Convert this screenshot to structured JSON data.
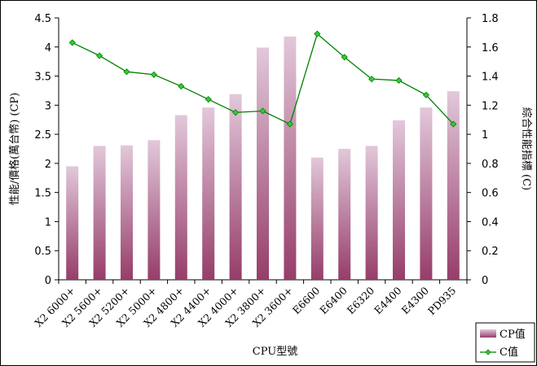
{
  "chart_data": {
    "type": "bar",
    "title": "",
    "xlabel": "CPU型號",
    "ylabel": "性能/價格(萬台幣) (CP)",
    "y2label": "綜合性能指標 (C)",
    "ylim": [
      0,
      4.5
    ],
    "y2lim": [
      0,
      1.8
    ],
    "yticks": [
      "0",
      "0.5",
      "1",
      "1.5",
      "2",
      "2.5",
      "3",
      "3.5",
      "4",
      "4.5"
    ],
    "y2ticks": [
      "0",
      "0.2",
      "0.4",
      "0.6",
      "0.8",
      "1",
      "1.2",
      "1.4",
      "1.6",
      "1.8"
    ],
    "categories": [
      "X2 6000+",
      "X2 5600+",
      "X2 5200+",
      "X2 5000+",
      "X2 4800+",
      "X2 4400+",
      "X2 4000+",
      "X2 3800+",
      "X2 3600+",
      "E6600",
      "E6400",
      "E6320",
      "E4400",
      "E4300",
      "PD935"
    ],
    "series": [
      {
        "name": "CP值",
        "type": "bar",
        "axis": "left",
        "values": [
          1.95,
          2.3,
          2.31,
          2.4,
          2.83,
          2.96,
          3.19,
          3.99,
          4.18,
          2.1,
          2.25,
          2.3,
          2.74,
          2.96,
          3.24
        ]
      },
      {
        "name": "C值",
        "type": "line",
        "axis": "right",
        "values": [
          1.63,
          1.54,
          1.43,
          1.41,
          1.33,
          1.24,
          1.15,
          1.16,
          1.07,
          1.69,
          1.53,
          1.38,
          1.37,
          1.27,
          1.07
        ]
      }
    ],
    "grid": false,
    "legend": "bottom-right",
    "colors": {
      "bar_top": "#e2c8da",
      "bar_bottom": "#963d69",
      "line": "#008000",
      "marker": "#33cc33"
    }
  }
}
